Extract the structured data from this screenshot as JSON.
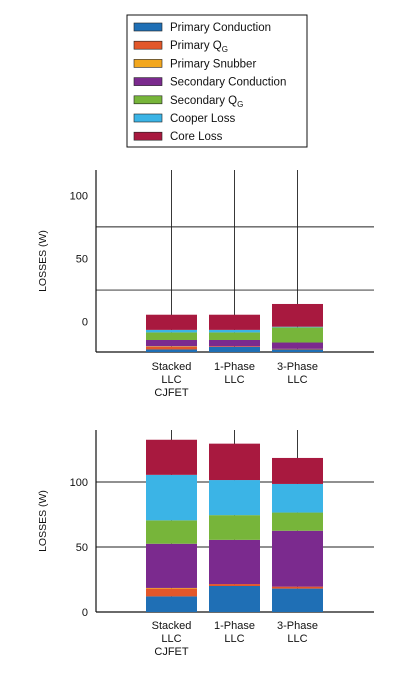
{
  "legend": {
    "items": [
      {
        "label": "Primary Conduction",
        "sub": "",
        "color": "#1f6fb5"
      },
      {
        "label": "Primary Q",
        "sub": "G",
        "color": "#e2572a"
      },
      {
        "label": "Primary Snubber",
        "sub": "",
        "color": "#f2a71e"
      },
      {
        "label": "Secondary Conduction",
        "sub": "",
        "color": "#7b2a8e"
      },
      {
        "label": "Secondary Q",
        "sub": "G",
        "color": "#77b53a"
      },
      {
        "label": "Cooper Loss",
        "sub": "",
        "color": "#3bb4e6"
      },
      {
        "label": "Core Loss",
        "sub": "",
        "color": "#a8193f"
      }
    ]
  },
  "chart_data": [
    {
      "type": "bar",
      "stacked": true,
      "ylabel": "LOSSES (W)",
      "ylim": [
        -24,
        120
      ],
      "yticks": [
        0,
        50,
        100
      ],
      "gridlines_y": [
        25,
        75
      ],
      "categories": [
        [
          "Stacked",
          "LLC",
          "CJFET"
        ],
        [
          "1-Phase",
          "LLC"
        ],
        [
          "3-Phase",
          "LLC"
        ]
      ],
      "series": [
        {
          "name": "Primary Conduction",
          "values": [
            2,
            4,
            2
          ]
        },
        {
          "name": "Primary QG",
          "values": [
            2,
            0.5,
            0.5
          ]
        },
        {
          "name": "Primary Snubber",
          "values": [
            0.5,
            0,
            0
          ]
        },
        {
          "name": "Secondary Conduction",
          "values": [
            5,
            5,
            5
          ]
        },
        {
          "name": "Secondary QG",
          "values": [
            6,
            6,
            12
          ]
        },
        {
          "name": "Cooper Loss",
          "values": [
            2,
            2,
            0.5
          ]
        },
        {
          "name": "Core Loss",
          "values": [
            12,
            12,
            18
          ]
        }
      ]
    },
    {
      "type": "bar",
      "stacked": true,
      "ylabel": "LOSSES (W)",
      "ylim": [
        0,
        140
      ],
      "yticks": [
        0,
        50,
        100
      ],
      "gridlines_y": [
        50,
        100
      ],
      "categories": [
        [
          "Stacked",
          "LLC",
          "CJFET"
        ],
        [
          "1-Phase",
          "LLC"
        ],
        [
          "3-Phase",
          "LLC"
        ]
      ],
      "series": [
        {
          "name": "Primary Conduction",
          "values": [
            12,
            20,
            18
          ]
        },
        {
          "name": "Primary QG",
          "values": [
            6,
            1.5,
            1.5
          ]
        },
        {
          "name": "Primary Snubber",
          "values": [
            0.5,
            0,
            0
          ]
        },
        {
          "name": "Secondary Conduction",
          "values": [
            34,
            34,
            43
          ]
        },
        {
          "name": "Secondary QG",
          "values": [
            18,
            19,
            14
          ]
        },
        {
          "name": "Cooper Loss",
          "values": [
            35,
            27,
            22
          ]
        },
        {
          "name": "Core Loss",
          "values": [
            27,
            28,
            20
          ]
        }
      ]
    }
  ]
}
